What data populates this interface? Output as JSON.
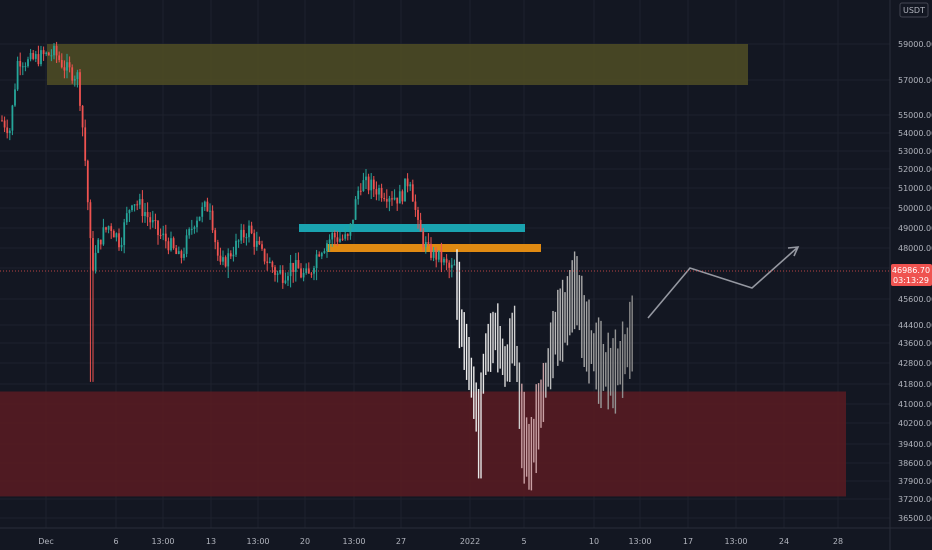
{
  "chart_data": {
    "type": "candlestick",
    "currency_label": "USDT",
    "y_ticks": [
      59000,
      57000,
      55000,
      54000,
      53000,
      52000,
      51000,
      50000,
      49000,
      48000,
      46800,
      45600,
      44400,
      43600,
      42800,
      41800,
      41000,
      40200,
      39400,
      38600,
      37900,
      37200,
      36500
    ],
    "x_ticks": [
      "Dec",
      "6",
      "13:00",
      "13",
      "13:00",
      "20",
      "13:00",
      "27",
      "2022",
      "5",
      "10",
      "13:00",
      "17",
      "13:00",
      "24",
      "28"
    ],
    "current_price": "46986.70",
    "countdown": "03:13:29",
    "zones": [
      {
        "name": "supply-zone",
        "color": "#4d4a25",
        "top": 59000,
        "bottom": 57000
      },
      {
        "name": "demand-zone",
        "color": "#5a1b22",
        "top": 41500,
        "bottom": 37300
      },
      {
        "name": "resistance-line",
        "color": "#1aa3b0",
        "price": 49000
      },
      {
        "name": "support-line",
        "color": "#e08a12",
        "price": 48000
      }
    ],
    "colors": {
      "up": "#26a69a",
      "down": "#ef5350",
      "projection": "#d1d4dc",
      "crosshair": "#ef5350"
    },
    "projection_path": [
      46700,
      45200,
      42200,
      39000,
      44500,
      48000,
      46000,
      44500,
      43600,
      47000,
      46500,
      48000
    ]
  }
}
